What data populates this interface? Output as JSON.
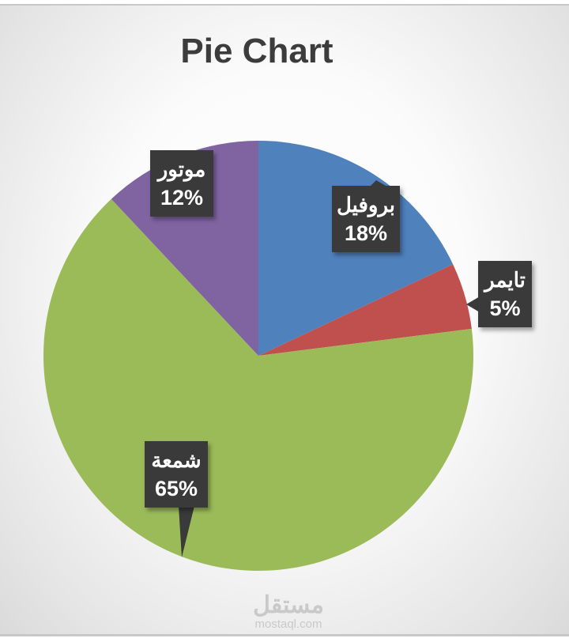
{
  "chart_data": {
    "type": "pie",
    "title": "Pie Chart",
    "start_angle": "12 o'clock, clockwise",
    "slices": [
      {
        "label": "بروفيل",
        "value": 18,
        "display": "18%",
        "color": "#4f81bd"
      },
      {
        "label": "تايمر",
        "value": 5,
        "display": "5%",
        "color": "#c0504d"
      },
      {
        "label": "شمعة",
        "value": 65,
        "display": "65%",
        "color": "#9bbb59"
      },
      {
        "label": "موتور",
        "value": 12,
        "display": "12%",
        "color": "#8064a2"
      }
    ],
    "legend": "none",
    "data_labels": "callouts with category and percentage"
  },
  "watermark": {
    "arabic": "مستقل",
    "latin": "mostaql.com"
  }
}
